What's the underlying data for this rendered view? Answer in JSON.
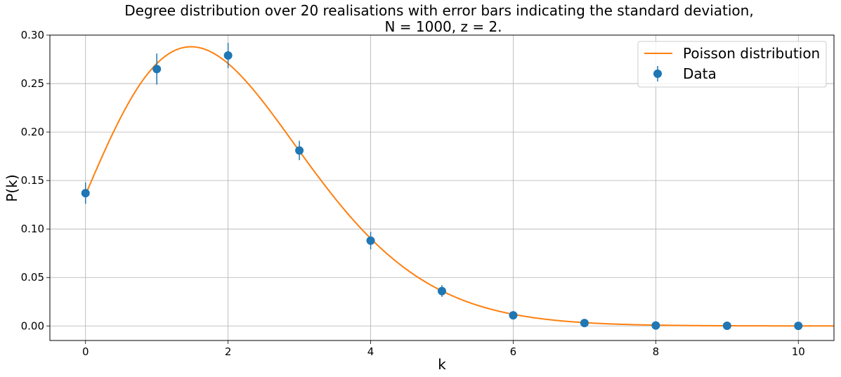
{
  "chart_data": {
    "type": "scatter",
    "title_lines": [
      "Degree distribution over 20 realisations with error bars indicating the standard deviation,",
      "N = 1000, z = 2."
    ],
    "xlabel": "k",
    "ylabel": "P(k)",
    "xlim": [
      -0.5,
      10.5
    ],
    "ylim": [
      -0.015,
      0.3
    ],
    "xticks": [
      0,
      2,
      4,
      6,
      8,
      10
    ],
    "xtick_labels": [
      "0",
      "2",
      "4",
      "6",
      "8",
      "10"
    ],
    "yticks": [
      0.0,
      0.05,
      0.1,
      0.15,
      0.2,
      0.25,
      0.3
    ],
    "ytick_labels": [
      "0.00",
      "0.05",
      "0.10",
      "0.15",
      "0.20",
      "0.25",
      "0.30"
    ],
    "grid": true,
    "legend_position": "top-right",
    "series": [
      {
        "name": "Poisson distribution",
        "kind": "line",
        "color": "#ff7f0e",
        "function": "poisson_continuous",
        "lambda": 2,
        "x_range": [
          0,
          10.5
        ]
      },
      {
        "name": "Data",
        "kind": "errorbar",
        "color": "#1f77b4",
        "x": [
          0,
          1,
          2,
          3,
          4,
          5,
          6,
          7,
          8,
          9,
          10
        ],
        "y": [
          0.137,
          0.265,
          0.279,
          0.181,
          0.088,
          0.036,
          0.011,
          0.003,
          0.0005,
          0.0002,
          0.0001
        ],
        "yerr": [
          0.011,
          0.016,
          0.013,
          0.01,
          0.009,
          0.006,
          0.0025,
          0.001,
          0.0005,
          0.0002,
          0.0001
        ]
      }
    ]
  }
}
